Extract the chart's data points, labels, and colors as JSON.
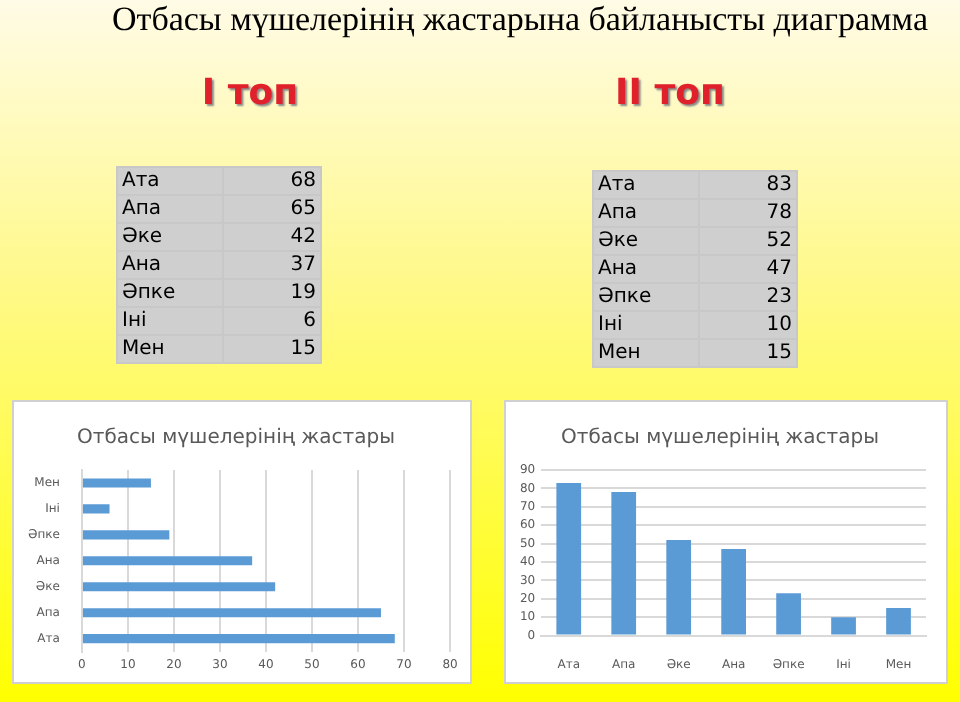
{
  "chart_data": [
    {
      "type": "other",
      "title": "Отбасы мүшелерінің жастарына байланысты диаграмма",
      "subtitle": "I топ",
      "categories": [
        "Ата",
        "Апа",
        "Әке",
        "Ана",
        "Әпке",
        "Іні",
        "Мен"
      ],
      "values": [
        68,
        65,
        42,
        37,
        19,
        6,
        15
      ],
      "data_labels": true
    },
    {
      "type": "other",
      "subtitle": "II топ",
      "categories": [
        "Ата",
        "Апа",
        "Әке",
        "Ана",
        "Әпке",
        "Іні",
        "Мен"
      ],
      "values": [
        83,
        78,
        52,
        47,
        23,
        10,
        15
      ],
      "data_labels": true
    },
    {
      "type": "bar",
      "orientation": "horizontal",
      "title": "Отбасы мүшелерінің жастары",
      "categories": [
        "Мен",
        "Іні",
        "Әпке",
        "Ана",
        "Әке",
        "Апа",
        "Ата"
      ],
      "values": [
        15,
        6,
        19,
        37,
        42,
        65,
        68
      ],
      "color": "#5b9bd5",
      "xlim": [
        0,
        80
      ],
      "xticks": [
        0,
        10,
        20,
        30,
        40,
        50,
        60,
        70,
        80
      ],
      "grid": "x"
    },
    {
      "type": "bar",
      "title": "Отбасы мүшелерінің жастары",
      "categories": [
        "Ата",
        "Апа",
        "Әке",
        "Ана",
        "Әпке",
        "Іні",
        "Мен"
      ],
      "values": [
        83,
        78,
        52,
        47,
        23,
        10,
        15
      ],
      "color": "#5b9bd5",
      "ylim": [
        0,
        90
      ],
      "yticks": [
        0,
        10,
        20,
        30,
        40,
        50,
        60,
        70,
        80,
        90
      ],
      "grid": "y"
    }
  ]
}
